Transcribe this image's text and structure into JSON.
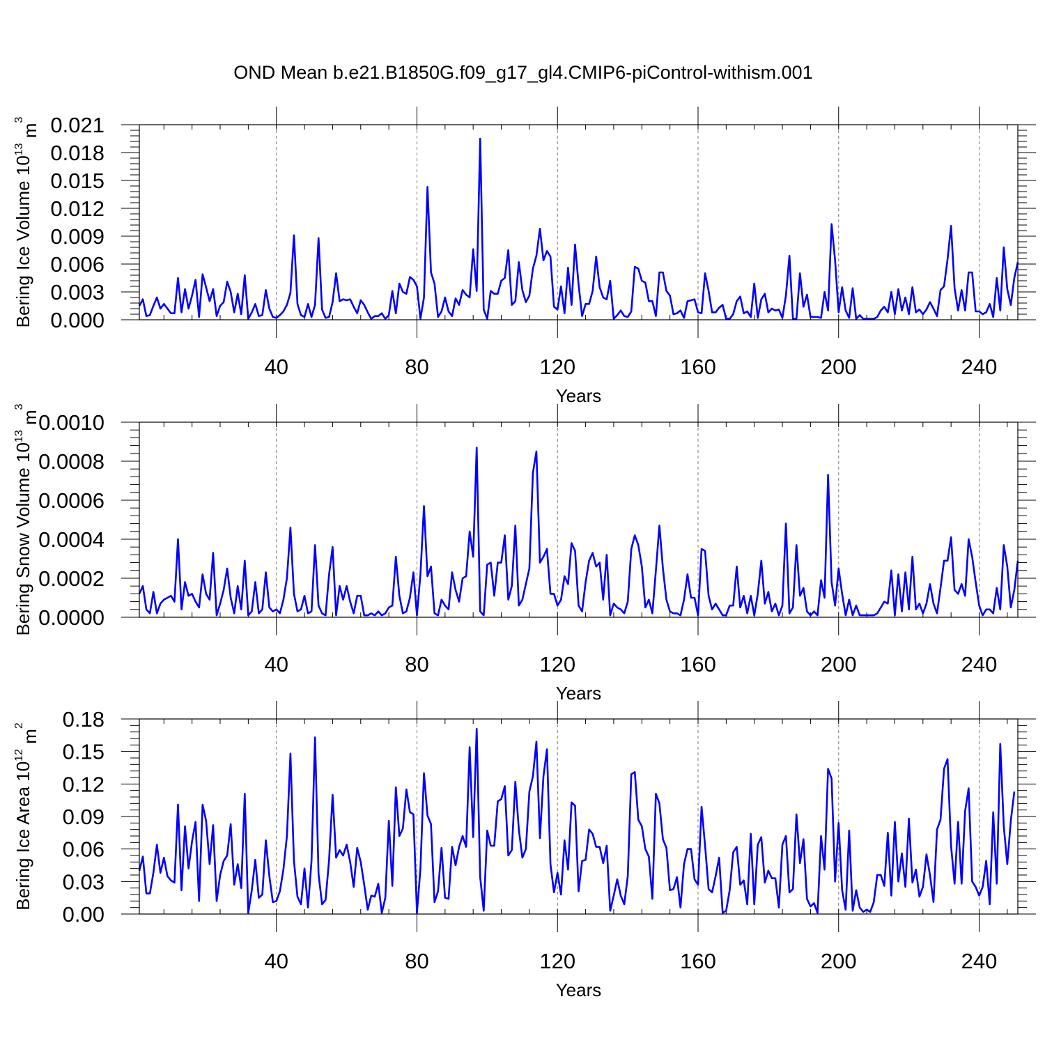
{
  "title": "OND Mean b.e21.B1850G.f09_g17_gl4.CMIP6-piControl-withism.001",
  "colors": {
    "line": "#0000ff",
    "axis": "#000000",
    "grid": "#777777"
  },
  "chart_data": [
    {
      "type": "line",
      "ylabel": {
        "main": "Bering Ice Volume 10",
        "exp": "13",
        "unit": " m",
        "unit_exp": "3"
      },
      "xlabel": "Years",
      "xlim": [
        1,
        251
      ],
      "ylim": [
        0,
        0.021
      ],
      "yticks": [
        "0.000",
        "0.003",
        "0.006",
        "0.009",
        "0.012",
        "0.015",
        "0.018",
        "0.021"
      ],
      "xticks": [
        "40",
        "80",
        "120",
        "160",
        "200",
        "240"
      ],
      "grid": "dashed vertical at x ticks",
      "series": [
        {
          "x_start": 1,
          "values": [
            0.0015,
            0.0022,
            0.0004,
            0.0005,
            0.0015,
            0.0024,
            0.0012,
            0.0017,
            0.0012,
            0.0007,
            0.0007,
            0.0045,
            0.0008,
            0.0033,
            0.0012,
            0.0026,
            0.0043,
            0.0003,
            0.0049,
            0.0035,
            0.002,
            0.0033,
            0.0004,
            0.0015,
            0.0019,
            0.0041,
            0.003,
            0.0008,
            0.0028,
            0.0006,
            0.0048,
            0.0001,
            0.0008,
            0.0017,
            0.0004,
            0.0005,
            0.0032,
            0.0012,
            0.0003,
            0.0002,
            0.0005,
            0.0009,
            0.0016,
            0.0029,
            0.0091,
            0.0017,
            0.0005,
            0.0003,
            0.0017,
            0.0003,
            0.0016,
            0.0088,
            0.0011,
            0.0002,
            0.0003,
            0.0019,
            0.005,
            0.002,
            0.0022,
            0.0021,
            0.0022,
            0.0014,
            0.0007,
            0.0021,
            0.0016,
            0.0008,
            0.0001,
            0.0004,
            0.0004,
            0.0007,
            0.0001,
            0.0005,
            0.0031,
            0.0007,
            0.0039,
            0.003,
            0.0028,
            0.0046,
            0.0043,
            0.0036,
            0.0001,
            0.0024,
            0.0143,
            0.0051,
            0.0039,
            0.0003,
            0.0009,
            0.0024,
            0.0009,
            0.0004,
            0.0023,
            0.0016,
            0.0032,
            0.0027,
            0.0024,
            0.0076,
            0.0031,
            0.0195,
            0.0011,
            0.0001,
            0.0031,
            0.0028,
            0.0028,
            0.0042,
            0.0045,
            0.0075,
            0.0016,
            0.002,
            0.0062,
            0.0032,
            0.0019,
            0.0026,
            0.0055,
            0.0069,
            0.0098,
            0.0064,
            0.0074,
            0.0068,
            0.0014,
            0.0011,
            0.0036,
            0.0007,
            0.0056,
            0.0016,
            0.0081,
            0.0038,
            0.0004,
            0.0017,
            0.0017,
            0.0031,
            0.0068,
            0.0035,
            0.0024,
            0.0022,
            0.0042,
            0.0001,
            0.0005,
            0.001,
            0.0004,
            0.0003,
            0.0009,
            0.0057,
            0.0055,
            0.0042,
            0.004,
            0.002,
            0.002,
            0.0004,
            0.0051,
            0.0051,
            0.0031,
            0.0026,
            0.0006,
            0.0007,
            0.001,
            0.0002,
            0.002,
            0.0021,
            0.0022,
            0.0008,
            0.0007,
            0.005,
            0.0031,
            0.0008,
            0.0008,
            0.0013,
            0.0016,
            0.0001,
            0.0001,
            0.0006,
            0.002,
            0.0025,
            0.0007,
            0.0009,
            0.0003,
            0.0039,
            0.0002,
            0.0022,
            0.0028,
            0.0008,
            0.0012,
            0.001,
            0.0011,
            0.0002,
            0.0026,
            0.0069,
            0.0001,
            0.0001,
            0.005,
            0.0014,
            0.0027,
            0.0003,
            0.0003,
            0.0003,
            0.0002,
            0.003,
            0.001,
            0.0103,
            0.0064,
            0.0008,
            0.0035,
            0.001,
            0.0002,
            0.0034,
            0.0001,
            0.0005,
            0.0001,
            0.0001,
            0.0001,
            0.0001,
            0.0003,
            0.001,
            0.0014,
            0.0008,
            0.003,
            0.0006,
            0.0033,
            0.001,
            0.0024,
            0.0006,
            0.0035,
            0.0008,
            0.0011,
            0.0006,
            0.0011,
            0.0019,
            0.0012,
            0.0004,
            0.0032,
            0.0036,
            0.0065,
            0.0101,
            0.0034,
            0.001,
            0.0032,
            0.001,
            0.0051,
            0.0051,
            0.0009,
            0.0009,
            0.0006,
            0.0008,
            0.0017,
            0.0003,
            0.0045,
            0.001,
            0.0078,
            0.0033,
            0.0016,
            0.0045,
            0.0062
          ]
        }
      ]
    },
    {
      "type": "line",
      "ylabel": {
        "main": "Bering Snow Volume 10",
        "exp": "13",
        "unit": " m",
        "unit_exp": "3"
      },
      "xlabel": "Years",
      "xlim": [
        1,
        251
      ],
      "ylim": [
        0,
        0.001
      ],
      "yticks": [
        "0.0000",
        "0.0002",
        "0.0004",
        "0.0006",
        "0.0008",
        "0.0010"
      ],
      "xticks": [
        "40",
        "80",
        "120",
        "160",
        "200",
        "240"
      ],
      "grid": "dashed vertical at x ticks",
      "series": [
        {
          "x_start": 1,
          "values": [
            0.00012,
            0.00016,
            4e-05,
            2e-05,
            0.00013,
            2e-05,
            7e-05,
            9e-05,
            0.0001,
            0.00011,
            8e-05,
            0.0004,
            4e-05,
            0.00018,
            0.00011,
            0.00012,
            8e-05,
            5e-05,
            0.00022,
            0.00012,
            9e-05,
            0.00033,
            1e-05,
            7e-05,
            0.00014,
            0.00025,
            0.0001,
            2e-05,
            0.00016,
            4e-05,
            0.00029,
            1e-05,
            3e-05,
            0.00018,
            2e-05,
            4e-05,
            0.00023,
            5e-05,
            3e-05,
            4e-05,
            2e-05,
            9e-05,
            0.0002,
            0.00046,
            0.00012,
            3e-05,
            4e-05,
            0.00011,
            2e-05,
            3e-05,
            0.00037,
            6e-05,
            2e-05,
            1e-05,
            0.00022,
            0.00036,
            1e-05,
            0.00016,
            9e-05,
            0.00016,
            8e-05,
            2e-05,
            0.00011,
            0.00011,
            1e-05,
            1e-05,
            2e-05,
            1e-05,
            3e-05,
            1e-05,
            2e-05,
            5e-05,
            6e-05,
            0.00031,
            0.00011,
            2e-05,
            3e-05,
            0.0001,
            0.00023,
            1e-05,
            0.00022,
            0.00057,
            0.00021,
            0.00026,
            2e-05,
            1e-05,
            9e-05,
            6e-05,
            4e-05,
            0.00023,
            0.00014,
            8e-05,
            0.0002,
            0.00021,
            0.00044,
            0.00031,
            0.00087,
            3e-05,
            1e-05,
            0.00027,
            0.00028,
            0.00011,
            0.00028,
            0.00028,
            0.00042,
            9e-05,
            0.00016,
            0.00047,
            6e-05,
            9e-05,
            0.00017,
            0.00025,
            0.00074,
            0.00085,
            0.00028,
            0.00031,
            0.00035,
            0.00012,
            0.00012,
            6e-05,
            9e-05,
            0.00021,
            0.00017,
            0.00038,
            0.00034,
            6e-05,
            3e-05,
            0.00018,
            0.00029,
            0.00033,
            0.00026,
            0.00028,
            9e-05,
            0.00032,
            1e-05,
            7e-05,
            5e-05,
            4e-05,
            2e-05,
            8e-05,
            0.00035,
            0.00042,
            0.00037,
            0.00026,
            5e-05,
            9e-05,
            2e-05,
            0.00024,
            0.00047,
            0.00025,
            9e-05,
            3e-05,
            2e-05,
            2e-05,
            1e-05,
            9e-05,
            0.00022,
            0.0001,
            0.0001,
            1e-05,
            0.00035,
            0.00034,
            0.00011,
            4e-05,
            7e-05,
            4e-05,
            1e-05,
            1e-05,
            6e-05,
            6e-05,
            0.00026,
            5e-05,
            0.00011,
            2e-05,
            0.00011,
            1e-05,
            0.00012,
            0.00029,
            7e-05,
            0.00013,
            3e-05,
            7e-05,
            1e-05,
            6e-05,
            0.00048,
            2e-05,
            5e-05,
            0.00037,
            0.00011,
            0.00015,
            3e-05,
            1e-05,
            3e-05,
            1e-05,
            0.00019,
            0.0001,
            0.00073,
            0.00018,
            6e-05,
            0.00025,
            0.00012,
            1e-05,
            9e-05,
            1e-05,
            6e-05,
            1e-05,
            1e-05,
            1e-05,
            1e-05,
            1e-05,
            2e-05,
            5e-05,
            8e-05,
            7e-05,
            0.00024,
            1e-05,
            0.00022,
            3e-05,
            0.00023,
            4e-05,
            0.00031,
            4e-05,
            7e-05,
            2e-05,
            7e-05,
            0.00017,
            7e-05,
            2e-05,
            0.00015,
            0.00029,
            0.00029,
            0.00041,
            0.00014,
            0.00012,
            0.00017,
            0.00011,
            0.0004,
            0.00031,
            0.00018,
            6e-05,
            1e-05,
            4e-05,
            4e-05,
            2e-05,
            0.00015,
            4e-05,
            0.00037,
            0.00026,
            5e-05,
            0.00014,
            0.00029
          ]
        }
      ]
    },
    {
      "type": "line",
      "ylabel": {
        "main": "Bering Ice Area 10",
        "exp": "12",
        "unit": " m",
        "unit_exp": "2"
      },
      "xlabel": "Years",
      "xlim": [
        1,
        251
      ],
      "ylim": [
        0,
        0.18
      ],
      "yticks": [
        "0.00",
        "0.03",
        "0.06",
        "0.09",
        "0.12",
        "0.15",
        "0.18"
      ],
      "xticks": [
        "40",
        "80",
        "120",
        "160",
        "200",
        "240"
      ],
      "grid": "dashed vertical at x ticks",
      "series": [
        {
          "x_start": 1,
          "values": [
            0.04,
            0.053,
            0.019,
            0.019,
            0.038,
            0.064,
            0.038,
            0.052,
            0.035,
            0.031,
            0.029,
            0.101,
            0.022,
            0.081,
            0.042,
            0.067,
            0.085,
            0.012,
            0.101,
            0.086,
            0.046,
            0.082,
            0.012,
            0.036,
            0.049,
            0.054,
            0.083,
            0.027,
            0.046,
            0.024,
            0.111,
            0.001,
            0.022,
            0.05,
            0.015,
            0.018,
            0.068,
            0.035,
            0.011,
            0.012,
            0.021,
            0.041,
            0.072,
            0.148,
            0.049,
            0.016,
            0.009,
            0.042,
            0.006,
            0.049,
            0.163,
            0.037,
            0.009,
            0.013,
            0.05,
            0.11,
            0.052,
            0.059,
            0.054,
            0.064,
            0.048,
            0.025,
            0.061,
            0.048,
            0.027,
            0.004,
            0.017,
            0.016,
            0.028,
            0.001,
            0.015,
            0.086,
            0.026,
            0.117,
            0.072,
            0.079,
            0.115,
            0.094,
            0.092,
            0.001,
            0.042,
            0.13,
            0.091,
            0.083,
            0.011,
            0.021,
            0.061,
            0.015,
            0.014,
            0.062,
            0.045,
            0.062,
            0.072,
            0.062,
            0.154,
            0.071,
            0.171,
            0.034,
            0.003,
            0.077,
            0.063,
            0.063,
            0.104,
            0.106,
            0.118,
            0.054,
            0.059,
            0.122,
            0.078,
            0.052,
            0.06,
            0.113,
            0.127,
            0.159,
            0.07,
            0.127,
            0.152,
            0.046,
            0.02,
            0.038,
            0.018,
            0.068,
            0.041,
            0.103,
            0.1,
            0.021,
            0.049,
            0.05,
            0.078,
            0.074,
            0.062,
            0.062,
            0.047,
            0.063,
            0.003,
            0.017,
            0.032,
            0.017,
            0.009,
            0.035,
            0.129,
            0.131,
            0.087,
            0.081,
            0.06,
            0.053,
            0.014,
            0.111,
            0.102,
            0.069,
            0.061,
            0.022,
            0.023,
            0.034,
            0.006,
            0.046,
            0.06,
            0.06,
            0.032,
            0.027,
            0.099,
            0.063,
            0.023,
            0.02,
            0.035,
            0.052,
            0.001,
            0.003,
            0.022,
            0.057,
            0.062,
            0.027,
            0.031,
            0.009,
            0.074,
            0.009,
            0.064,
            0.071,
            0.029,
            0.04,
            0.033,
            0.033,
            0.006,
            0.064,
            0.072,
            0.02,
            0.023,
            0.092,
            0.047,
            0.069,
            0.014,
            0.007,
            0.01,
            0.001,
            0.072,
            0.041,
            0.134,
            0.125,
            0.03,
            0.084,
            0.022,
            0.004,
            0.077,
            0.003,
            0.022,
            0.006,
            0.002,
            0.004,
            0.002,
            0.011,
            0.036,
            0.036,
            0.026,
            0.075,
            0.017,
            0.085,
            0.03,
            0.056,
            0.025,
            0.088,
            0.029,
            0.041,
            0.016,
            0.025,
            0.055,
            0.036,
            0.011,
            0.078,
            0.087,
            0.134,
            0.143,
            0.063,
            0.028,
            0.085,
            0.028,
            0.095,
            0.116,
            0.03,
            0.025,
            0.017,
            0.025,
            0.049,
            0.009,
            0.094,
            0.028,
            0.157,
            0.081,
            0.046,
            0.086,
            0.113
          ]
        }
      ]
    }
  ]
}
